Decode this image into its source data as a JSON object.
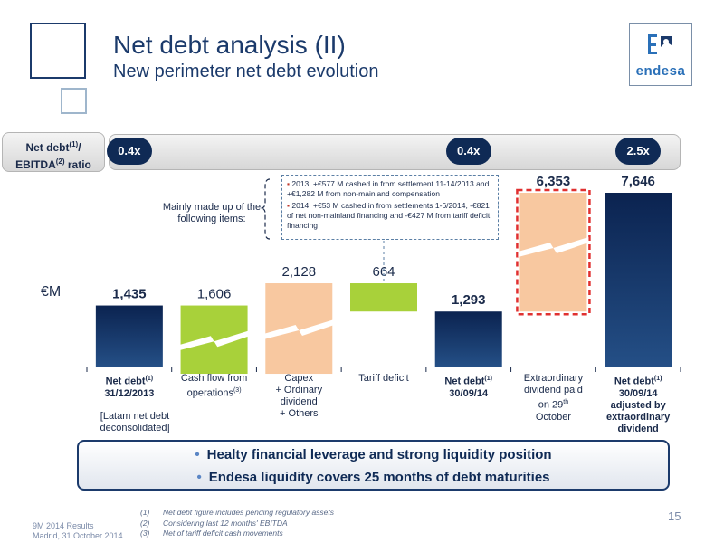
{
  "header": {
    "title": "Net debt analysis (II)",
    "subtitle": "New perimeter net debt evolution"
  },
  "logo": {
    "text": "endesa"
  },
  "ratio": {
    "label_line1": "Net debt",
    "label_sup1": "(1)",
    "label_slash": "/",
    "label_line2": "EBITDA",
    "label_sup2": "(2)",
    "label_tail": " ratio",
    "pills": [
      {
        "category_index": 0,
        "value": "0.4x"
      },
      {
        "category_index": 4,
        "value": "0.4x"
      },
      {
        "category_index": 6,
        "value": "2.5x"
      }
    ]
  },
  "chart_data": {
    "type": "bar",
    "subtype": "waterfall",
    "unit": "€M",
    "categories": [
      "Net debt(1) 31/12/2013",
      "Cash flow from operations(3)",
      "Capex + Ordinary dividend + Others",
      "Tariff deficit",
      "Net debt(1) 30/09/14",
      "Extraordinary dividend paid on 29th October",
      "Net debt(1) 30/09/14 adjusted by extraordinary dividend"
    ],
    "values": [
      1435,
      -1606,
      2128,
      -664,
      1293,
      6353,
      7646
    ],
    "value_labels": [
      "1,435",
      "1,606",
      "2,128",
      "664",
      "1,293",
      "6,353",
      "7,646"
    ],
    "bar_kinds": [
      "total",
      "decrease",
      "increase",
      "decrease",
      "total",
      "increase",
      "total"
    ],
    "colors": {
      "total": "#0f2a55",
      "decrease": "#a8d13a",
      "increase": "#f8c8a0",
      "highlight_border": "#e03030"
    },
    "axis_broken": true
  },
  "annotations": {
    "mainly": "Mainly made up of the following items:",
    "note_items": [
      "2013: +€577 M cashed in from settlement 11-14/2013 and +€1,282 M from non-mainland compensation",
      "2014: +€53 M cashed in from settlements 1-6/2014, -€821 of net non-mainland financing and -€427 M from tariff deficit financing"
    ],
    "latam": "[Latam net debt deconsolidated]"
  },
  "category_labels": [
    {
      "lines": [
        "Net debt",
        "31/12/2013"
      ],
      "sup": "(1)",
      "bold": true
    },
    {
      "lines": [
        "Cash flow from",
        "operations"
      ],
      "sup": "(3)",
      "bold": false
    },
    {
      "lines": [
        "Capex",
        "+ Ordinary dividend",
        "+ Others"
      ],
      "bold": false
    },
    {
      "lines": [
        "Tariff deficit"
      ],
      "bold": false
    },
    {
      "lines": [
        "Net debt",
        "30/09/14"
      ],
      "sup": "(1)",
      "bold": true
    },
    {
      "lines": [
        "Extraordinary",
        "dividend paid",
        "on 29",
        "October"
      ],
      "sup": "th",
      "bold": false
    },
    {
      "lines": [
        "Net debt",
        "30/09/14",
        "adjusted by",
        "extraordinary",
        "dividend"
      ],
      "sup": "(1)",
      "bold": true
    }
  ],
  "messages": [
    "Healty financial leverage and strong liquidity position",
    "Endesa liquidity covers 25 months of debt maturities"
  ],
  "footer": {
    "left_line1": "9M 2014 Results",
    "left_line2": "Madrid, 31 October 2014",
    "footnotes": [
      {
        "n": "(1)",
        "text": "Net debt figure includes pending regulatory assets"
      },
      {
        "n": "(2)",
        "text": "Considering last 12 months' EBITDA"
      },
      {
        "n": "(3)",
        "text": "Net of tariff deficit cash movements"
      }
    ],
    "page_number": "15"
  }
}
